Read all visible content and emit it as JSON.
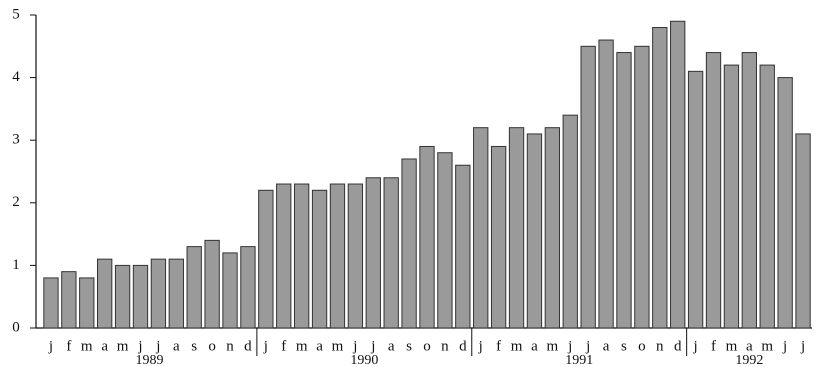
{
  "chart_data": {
    "type": "bar",
    "color": "#9a9a9a",
    "ylim": [
      0,
      5
    ],
    "yticks": [
      0,
      1,
      2,
      3,
      4,
      5
    ],
    "groups": [
      {
        "name": "1989",
        "categories": [
          "j",
          "f",
          "m",
          "a",
          "m",
          "j",
          "j",
          "a",
          "s",
          "o",
          "n",
          "d"
        ],
        "values": [
          0.8,
          0.9,
          0.8,
          1.1,
          1.0,
          1.0,
          1.1,
          1.1,
          1.3,
          1.4,
          1.2,
          1.3
        ]
      },
      {
        "name": "1990",
        "categories": [
          "j",
          "f",
          "m",
          "a",
          "m",
          "j",
          "j",
          "a",
          "s",
          "o",
          "n",
          "d"
        ],
        "values": [
          2.2,
          2.3,
          2.3,
          2.2,
          2.3,
          2.3,
          2.4,
          2.4,
          2.7,
          2.9,
          2.8,
          2.6
        ]
      },
      {
        "name": "1991",
        "categories": [
          "j",
          "f",
          "m",
          "a",
          "m",
          "j",
          "j",
          "a",
          "s",
          "o",
          "n",
          "d"
        ],
        "values": [
          3.2,
          2.9,
          3.2,
          3.1,
          3.2,
          3.4,
          4.5,
          4.6,
          4.4,
          4.5,
          4.8,
          4.9
        ]
      },
      {
        "name": "1992",
        "categories": [
          "j",
          "f",
          "m",
          "a",
          "m",
          "j",
          "j"
        ],
        "values": [
          4.1,
          4.4,
          4.2,
          4.4,
          4.2,
          4.0,
          3.1
        ]
      }
    ]
  }
}
